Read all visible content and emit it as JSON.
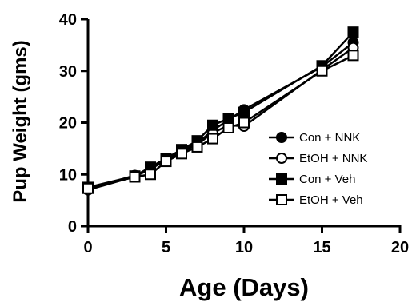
{
  "chart_data": {
    "type": "line",
    "title": "",
    "xlabel": "Age (Days)",
    "ylabel": "Pup Weight (gms)",
    "xlim": [
      0,
      20
    ],
    "ylim": [
      0,
      40
    ],
    "xticks": [
      "0",
      "5",
      "10",
      "15",
      "20"
    ],
    "yticks": [
      "0",
      "10",
      "20",
      "30",
      "40"
    ],
    "grid": false,
    "legend_position": "right",
    "series": [
      {
        "name": "Con + NNK",
        "marker": "filled-circle",
        "x": [
          0,
          3,
          4,
          5,
          6,
          7,
          8,
          9,
          10,
          15,
          17
        ],
        "y": [
          7.2,
          9.8,
          11.2,
          13.0,
          14.5,
          16.0,
          18.5,
          20.5,
          22.5,
          30.8,
          35.5
        ]
      },
      {
        "name": "EtOH + NNK",
        "marker": "open-circle",
        "x": [
          0,
          3,
          4,
          5,
          6,
          7,
          8,
          9,
          10,
          15,
          17
        ],
        "y": [
          7.0,
          9.6,
          11.0,
          12.8,
          14.3,
          15.8,
          18.0,
          19.5,
          19.3,
          30.2,
          34.5
        ]
      },
      {
        "name": "Con + Veh",
        "marker": "filled-square",
        "x": [
          0,
          3,
          4,
          5,
          6,
          7,
          8,
          9,
          10,
          15,
          17
        ],
        "y": [
          7.5,
          9.7,
          11.4,
          13.1,
          14.8,
          16.5,
          19.5,
          20.8,
          22.0,
          31.0,
          37.5
        ]
      },
      {
        "name": "EtOH + Veh",
        "marker": "open-square",
        "x": [
          0,
          3,
          4,
          5,
          6,
          7,
          8,
          9,
          10,
          15,
          17
        ],
        "y": [
          7.3,
          9.5,
          10.0,
          12.5,
          14.0,
          15.3,
          16.9,
          19.0,
          20.0,
          30.0,
          33.0
        ]
      }
    ]
  }
}
